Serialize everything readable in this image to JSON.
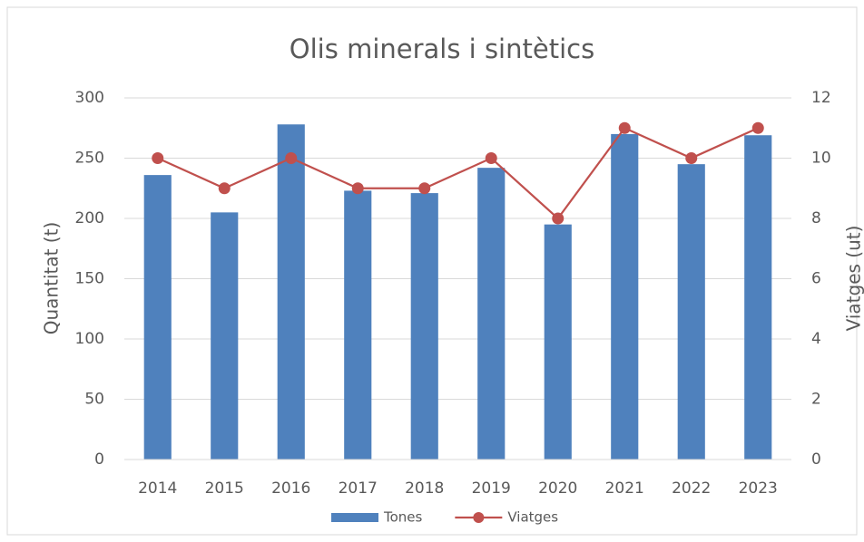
{
  "chart_data": {
    "type": "bar_line",
    "title": "Olis minerals i sintètics",
    "y_label": "Quantitat (t)",
    "y2_label": "Viatges (ut)",
    "categories": [
      "2014",
      "2015",
      "2016",
      "2017",
      "2018",
      "2019",
      "2020",
      "2021",
      "2022",
      "2023"
    ],
    "series": [
      {
        "name": "Tones",
        "type": "bar",
        "color": "#4f81bd",
        "values": [
          236,
          205,
          278,
          223,
          221,
          242,
          195,
          270,
          245,
          269
        ]
      },
      {
        "name": "Viatges",
        "type": "line",
        "axis": "y2",
        "color": "#c0504d",
        "values": [
          10,
          9,
          10,
          9,
          9,
          10,
          8,
          11,
          10,
          11
        ]
      }
    ],
    "ylim": [
      0,
      300
    ],
    "yticks": [
      0,
      50,
      100,
      150,
      200,
      250,
      300
    ],
    "y2lim": [
      0,
      12
    ],
    "y2ticks": [
      0,
      2,
      4,
      6,
      8,
      10,
      12
    ],
    "grid": true,
    "legend": "bottom"
  }
}
